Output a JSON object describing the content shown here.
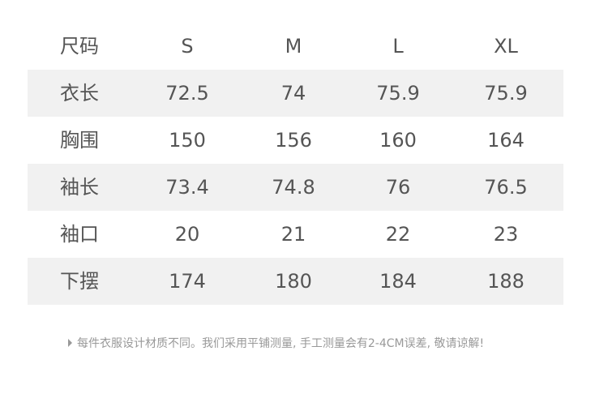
{
  "table": {
    "header": [
      "尺码",
      "S",
      "M",
      "L",
      "XL"
    ],
    "rows": [
      [
        "衣长",
        "72.5",
        "74",
        "75.9",
        "75.9"
      ],
      [
        "胸围",
        "150",
        "156",
        "160",
        "164"
      ],
      [
        "袖长",
        "73.4",
        "74.8",
        "76",
        "76.5"
      ],
      [
        "袖口",
        "20",
        "21",
        "22",
        "23"
      ],
      [
        "下摆",
        "174",
        "180",
        "184",
        "188"
      ]
    ]
  },
  "note": "每件衣服设计材质不同。我们采用平铺测量, 手工测量会有2-4CM误差, 敬请谅解!"
}
